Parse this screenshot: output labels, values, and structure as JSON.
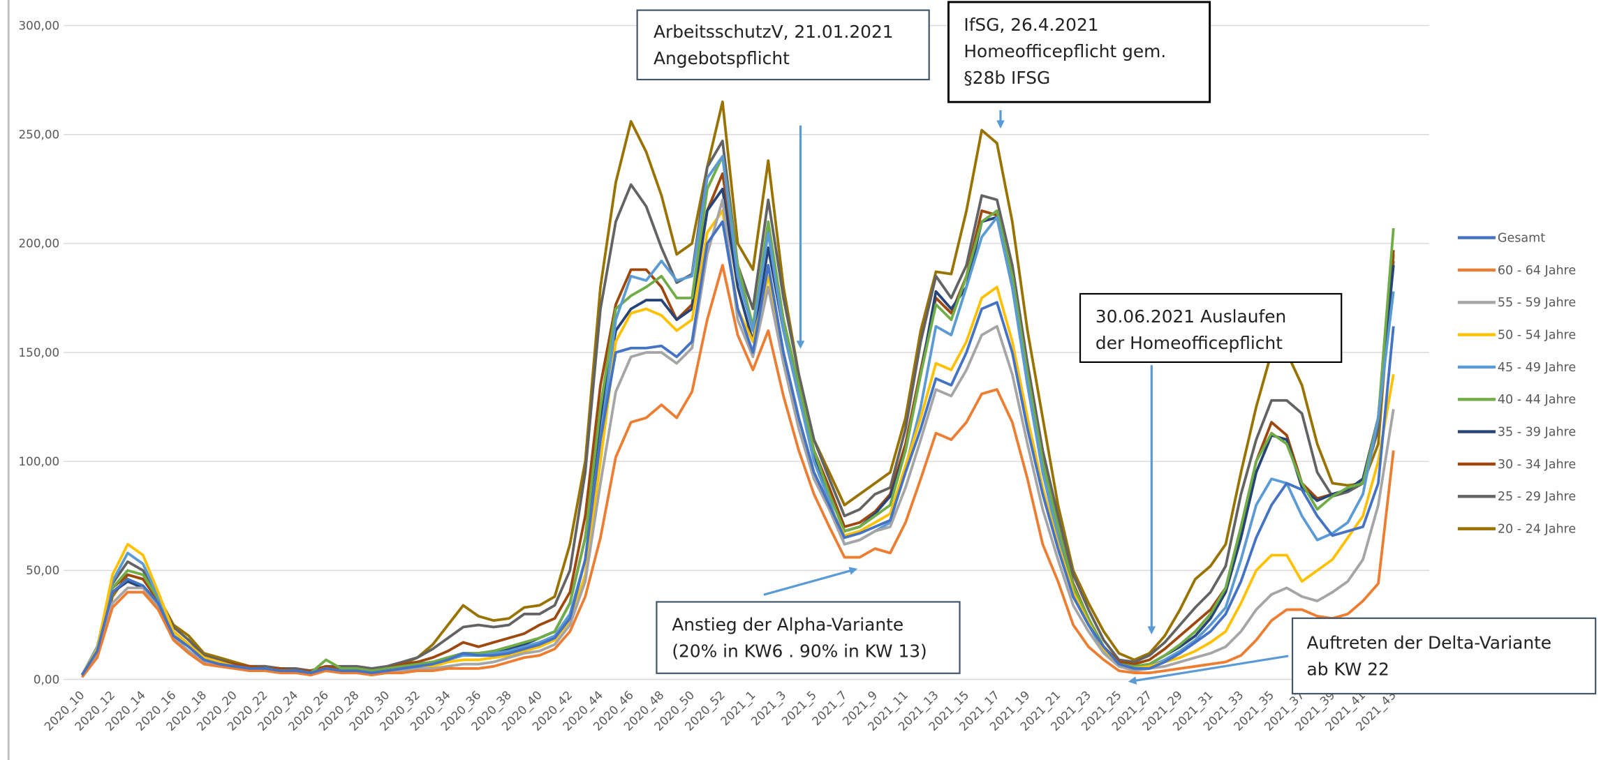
{
  "chart_data": {
    "type": "line",
    "categories": [
      "2020_10",
      null,
      "2020_12",
      null,
      "2020_14",
      null,
      "2020_16",
      null,
      "2020_18",
      null,
      "2020_20",
      null,
      "2020_22",
      null,
      "2020_24",
      null,
      "2020_26",
      null,
      "2020_28",
      null,
      "2020_30",
      null,
      "2020_32",
      null,
      "2020_34",
      null,
      "2020_36",
      null,
      "2020_38",
      null,
      "2020_40",
      null,
      "2020_42",
      null,
      "2020_44",
      null,
      "2020_46",
      null,
      "2020_48",
      null,
      "2020_50",
      null,
      "2020_52",
      null,
      "2021_1",
      null,
      "2021_3",
      null,
      "2021_5",
      null,
      "2021_7",
      null,
      "2021_9",
      null,
      "2021_11",
      null,
      "2021_13",
      null,
      "2021_15",
      null,
      "2021_17",
      null,
      "2021_19",
      null,
      "2021_21",
      null,
      "2021_23",
      null,
      "2021_25",
      null,
      "2021_27",
      null,
      "2021_29",
      null,
      "2021_31",
      null,
      "2021_33",
      null,
      "2021_35",
      null,
      "2021_37",
      null,
      "2021_39",
      null,
      "2021_41",
      null,
      "2021_43"
    ],
    "ylim": [
      0,
      300
    ],
    "yticks": [
      {
        "value": 0,
        "label": "0,00"
      },
      {
        "value": 50,
        "label": "50,00"
      },
      {
        "value": 100,
        "label": "100,00"
      },
      {
        "value": 150,
        "label": "150,00"
      },
      {
        "value": 200,
        "label": "200,00"
      },
      {
        "value": 250,
        "label": "250,00"
      },
      {
        "value": 300,
        "label": "300,00"
      }
    ],
    "grid": true,
    "legend": "right",
    "series": [
      {
        "name": "Gesamt",
        "color": "#4472c4",
        "values": [
          2,
          13,
          40,
          46,
          43,
          35,
          20,
          15,
          9,
          7,
          6,
          5,
          5,
          4,
          4,
          3,
          5,
          4,
          4,
          3,
          4,
          5,
          6,
          7,
          9,
          12,
          11,
          11,
          12,
          14,
          16,
          19,
          28,
          55,
          110,
          150,
          152,
          152,
          153,
          148,
          155,
          200,
          210,
          170,
          150,
          190,
          150,
          120,
          95,
          80,
          65,
          67,
          70,
          73,
          95,
          115,
          138,
          135,
          150,
          170,
          173,
          150,
          115,
          85,
          60,
          38,
          25,
          15,
          7,
          5,
          5,
          8,
          12,
          17,
          22,
          30,
          45,
          65,
          80,
          90,
          87,
          75,
          66,
          68,
          70,
          90,
          162
        ]
      },
      {
        "name": "60 - 64 Jahre",
        "color": "#ed7d31",
        "values": [
          1,
          10,
          33,
          40,
          40,
          32,
          18,
          12,
          7,
          6,
          5,
          4,
          4,
          3,
          3,
          2,
          4,
          3,
          3,
          2,
          3,
          3,
          4,
          4,
          5,
          5,
          5,
          6,
          8,
          10,
          11,
          14,
          22,
          38,
          65,
          102,
          118,
          120,
          126,
          120,
          132,
          165,
          190,
          158,
          142,
          160,
          130,
          105,
          85,
          70,
          56,
          56,
          60,
          58,
          72,
          92,
          113,
          110,
          118,
          131,
          133,
          118,
          92,
          62,
          45,
          25,
          15,
          9,
          4,
          3,
          3,
          4,
          5,
          6,
          7,
          8,
          11,
          18,
          27,
          32,
          32,
          29,
          28,
          30,
          36,
          44,
          105
        ]
      },
      {
        "name": "55 - 59 Jahre",
        "color": "#a5a5a5",
        "values": [
          1,
          11,
          35,
          42,
          42,
          33,
          19,
          13,
          8,
          6,
          5,
          4,
          4,
          3,
          3,
          3,
          4,
          3,
          3,
          3,
          3,
          4,
          5,
          5,
          6,
          7,
          7,
          8,
          10,
          12,
          13,
          16,
          25,
          45,
          90,
          132,
          148,
          150,
          150,
          145,
          152,
          195,
          220,
          165,
          148,
          180,
          145,
          115,
          92,
          78,
          62,
          64,
          68,
          70,
          88,
          110,
          133,
          130,
          142,
          158,
          162,
          140,
          108,
          78,
          55,
          34,
          22,
          12,
          6,
          4,
          5,
          6,
          8,
          10,
          12,
          15,
          22,
          32,
          39,
          42,
          38,
          36,
          40,
          45,
          55,
          80,
          124
        ]
      },
      {
        "name": "50 - 54 Jahre",
        "color": "#ffc000",
        "values": [
          2,
          14,
          48,
          62,
          57,
          40,
          22,
          16,
          10,
          8,
          6,
          5,
          5,
          4,
          4,
          3,
          5,
          4,
          4,
          3,
          4,
          5,
          5,
          6,
          8,
          9,
          9,
          10,
          11,
          13,
          15,
          18,
          27,
          48,
          100,
          155,
          168,
          170,
          167,
          160,
          165,
          205,
          215,
          170,
          155,
          185,
          150,
          120,
          95,
          80,
          66,
          68,
          72,
          76,
          98,
          120,
          145,
          142,
          155,
          175,
          180,
          155,
          120,
          88,
          62,
          40,
          26,
          14,
          7,
          5,
          6,
          8,
          10,
          13,
          17,
          22,
          35,
          50,
          57,
          57,
          45,
          50,
          55,
          65,
          75,
          100,
          140
        ]
      },
      {
        "name": "45 - 49 Jahre",
        "color": "#5b9bd5",
        "values": [
          2,
          15,
          45,
          58,
          53,
          38,
          22,
          16,
          10,
          8,
          6,
          5,
          5,
          4,
          4,
          3,
          5,
          4,
          4,
          3,
          4,
          5,
          6,
          7,
          9,
          11,
          11,
          12,
          13,
          15,
          17,
          20,
          30,
          55,
          110,
          165,
          185,
          183,
          192,
          183,
          185,
          230,
          240,
          185,
          160,
          205,
          160,
          130,
          100,
          82,
          62,
          64,
          68,
          72,
          97,
          125,
          162,
          158,
          180,
          203,
          212,
          180,
          135,
          95,
          65,
          38,
          25,
          13,
          6,
          5,
          6,
          9,
          13,
          18,
          25,
          33,
          55,
          80,
          92,
          90,
          75,
          64,
          67,
          72,
          85,
          120,
          178
        ]
      },
      {
        "name": "40 - 44 Jahre",
        "color": "#70ad47",
        "values": [
          2,
          12,
          42,
          50,
          48,
          37,
          22,
          16,
          10,
          8,
          6,
          5,
          5,
          4,
          4,
          3,
          9,
          5,
          5,
          4,
          5,
          6,
          7,
          8,
          10,
          12,
          12,
          13,
          15,
          17,
          19,
          22,
          35,
          65,
          125,
          170,
          176,
          180,
          185,
          175,
          175,
          225,
          240,
          190,
          162,
          210,
          165,
          135,
          105,
          85,
          68,
          70,
          75,
          80,
          105,
          140,
          172,
          165,
          185,
          210,
          215,
          185,
          140,
          100,
          70,
          43,
          28,
          15,
          7,
          6,
          7,
          11,
          16,
          22,
          30,
          42,
          70,
          100,
          113,
          108,
          90,
          78,
          84,
          88,
          90,
          120,
          207
        ]
      },
      {
        "name": "35 - 39 Jahre",
        "color": "#264478",
        "values": [
          2,
          12,
          40,
          45,
          42,
          34,
          20,
          15,
          9,
          7,
          6,
          5,
          5,
          4,
          4,
          3,
          5,
          4,
          4,
          3,
          4,
          6,
          7,
          8,
          10,
          12,
          12,
          13,
          14,
          16,
          19,
          22,
          35,
          65,
          120,
          160,
          170,
          174,
          174,
          165,
          170,
          215,
          225,
          180,
          155,
          198,
          160,
          130,
          102,
          85,
          68,
          70,
          76,
          84,
          105,
          140,
          178,
          170,
          180,
          210,
          212,
          180,
          138,
          98,
          68,
          42,
          27,
          14,
          7,
          6,
          7,
          11,
          15,
          20,
          28,
          40,
          65,
          95,
          112,
          110,
          88,
          82,
          85,
          87,
          92,
          120,
          190
        ]
      },
      {
        "name": "30 - 34 Jahre",
        "color": "#9e480e",
        "values": [
          2,
          12,
          42,
          48,
          46,
          36,
          22,
          16,
          10,
          8,
          7,
          6,
          5,
          5,
          4,
          4,
          6,
          5,
          5,
          4,
          5,
          7,
          8,
          10,
          13,
          17,
          15,
          17,
          19,
          21,
          25,
          28,
          40,
          75,
          135,
          172,
          188,
          188,
          180,
          165,
          172,
          215,
          232,
          188,
          160,
          208,
          165,
          135,
          105,
          88,
          70,
          72,
          77,
          85,
          108,
          142,
          175,
          168,
          185,
          215,
          213,
          185,
          140,
          100,
          70,
          44,
          28,
          15,
          8,
          7,
          9,
          14,
          20,
          26,
          32,
          42,
          70,
          100,
          118,
          112,
          90,
          83,
          85,
          87,
          92,
          120,
          197
        ]
      },
      {
        "name": "25 - 29 Jahre",
        "color": "#636363",
        "values": [
          2,
          12,
          44,
          54,
          50,
          38,
          24,
          18,
          11,
          9,
          7,
          6,
          6,
          5,
          5,
          4,
          6,
          6,
          6,
          5,
          6,
          8,
          10,
          14,
          19,
          24,
          25,
          24,
          25,
          30,
          30,
          34,
          50,
          95,
          170,
          210,
          227,
          217,
          198,
          182,
          186,
          235,
          247,
          190,
          170,
          220,
          175,
          140,
          110,
          92,
          75,
          78,
          85,
          88,
          115,
          155,
          185,
          175,
          190,
          222,
          220,
          190,
          145,
          105,
          75,
          48,
          32,
          18,
          9,
          8,
          11,
          17,
          25,
          33,
          40,
          52,
          85,
          110,
          128,
          128,
          122,
          95,
          84,
          86,
          90,
          115,
          192
        ]
      },
      {
        "name": "20 - 24 Jahre",
        "color": "#997300",
        "values": [
          2,
          10,
          38,
          48,
          46,
          38,
          25,
          20,
          12,
          10,
          8,
          6,
          6,
          5,
          4,
          4,
          6,
          5,
          5,
          4,
          5,
          7,
          10,
          16,
          25,
          34,
          29,
          27,
          28,
          33,
          34,
          38,
          62,
          100,
          180,
          228,
          256,
          242,
          222,
          195,
          200,
          235,
          265,
          200,
          188,
          238,
          180,
          140,
          110,
          95,
          80,
          85,
          90,
          95,
          120,
          160,
          187,
          186,
          215,
          252,
          246,
          210,
          160,
          120,
          80,
          50,
          35,
          22,
          12,
          9,
          12,
          20,
          32,
          46,
          52,
          62,
          95,
          125,
          150,
          150,
          135,
          108,
          90,
          89,
          90,
          108,
          195
        ]
      }
    ],
    "annotations": [
      {
        "lines": [
          "ArbeitsschutzV, 21.01.2021",
          "Angebotspflicht"
        ]
      },
      {
        "lines": [
          "IfSG, 26.4.2021",
          "Homeofficepflicht gem.",
          "§28b IFSG"
        ]
      },
      {
        "lines": [
          "30.06.2021 Auslaufen",
          "der Homeofficepflicht"
        ]
      },
      {
        "lines": [
          "Anstieg der Alpha-Variante",
          "(20% in KW6 . 90% in KW 13)"
        ]
      },
      {
        "lines": [
          "Auftreten der Delta-Variante",
          "ab KW 22"
        ]
      }
    ]
  }
}
